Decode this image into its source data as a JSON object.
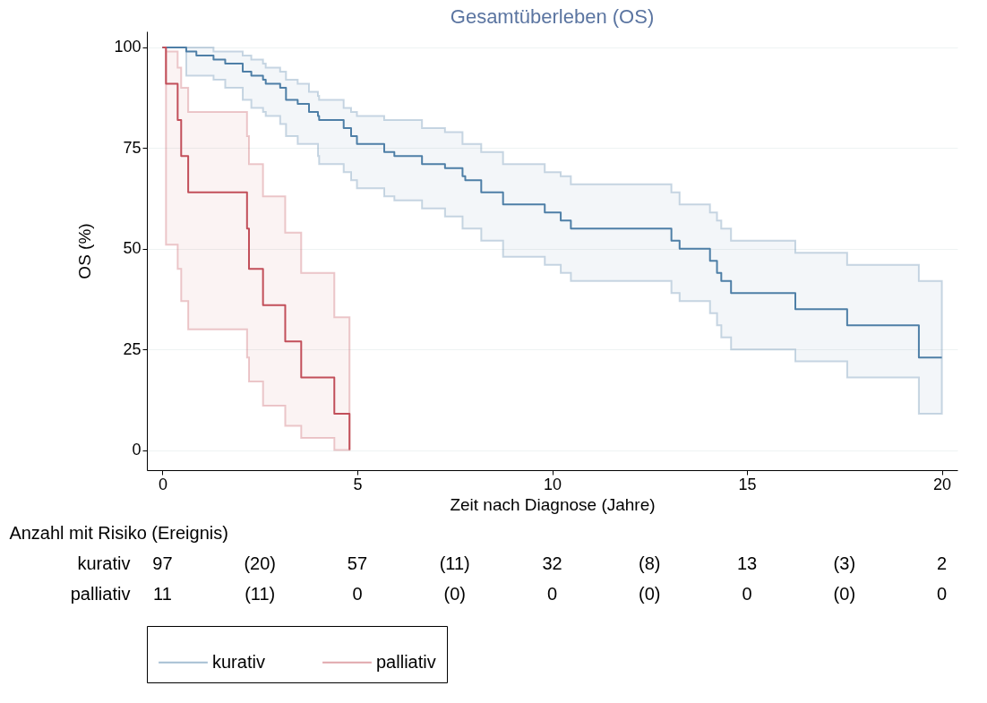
{
  "chart_data": {
    "type": "step",
    "title": "Gesamtüberleben (OS)",
    "xlabel": "Zeit nach Diagnose (Jahre)",
    "ylabel": "OS (%)",
    "xlim": [
      -0.4,
      20.4
    ],
    "ylim": [
      -5,
      104
    ],
    "xticks": [
      0,
      5,
      10,
      15,
      20
    ],
    "yticks": [
      0,
      25,
      50,
      75,
      100
    ],
    "grid": "y",
    "legend": "bottom",
    "series": [
      {
        "name": "kurativ",
        "color": "#4e7fa7",
        "x": [
          0,
          0.61,
          0.87,
          1.31,
          1.61,
          2.06,
          2.28,
          2.58,
          2.65,
          3.02,
          3.17,
          3.47,
          3.76,
          3.99,
          4.02,
          4.65,
          4.84,
          4.99,
          5.69,
          5.95,
          6.66,
          7.25,
          7.7,
          7.77,
          8.18,
          8.74,
          9.81,
          10.22,
          10.48,
          13.06,
          13.27,
          14.05,
          14.23,
          14.34,
          14.59,
          16.24,
          17.57,
          19.41,
          20
        ],
        "values": [
          100,
          99,
          98,
          97,
          96,
          94,
          93,
          92,
          91,
          90,
          87,
          86,
          84,
          83,
          82,
          80,
          78,
          76,
          74,
          73,
          71,
          70,
          68,
          67,
          64,
          61,
          59,
          57,
          55,
          52,
          50,
          47,
          44,
          42,
          39,
          35,
          31,
          23,
          23
        ],
        "upper": [
          100,
          100,
          100,
          99,
          99,
          98,
          97,
          96,
          95,
          94,
          92,
          91,
          89,
          88,
          87,
          85,
          84,
          83,
          82,
          82,
          80,
          79,
          76,
          76,
          74,
          71,
          69,
          68,
          66,
          64,
          61,
          59,
          57,
          55,
          52,
          49,
          46,
          42,
          42
        ],
        "lower": [
          100,
          93,
          93,
          92,
          90,
          87,
          85,
          84,
          83,
          81,
          78,
          76,
          76,
          73,
          71,
          69,
          67,
          65,
          63,
          62,
          60,
          58,
          55,
          55,
          52,
          48,
          46,
          44,
          42,
          39,
          37,
          34,
          31,
          28,
          25,
          22,
          18,
          9,
          9
        ]
      },
      {
        "name": "palliativ",
        "color": "#c24f5a",
        "x": [
          0,
          0.09,
          0.39,
          0.48,
          0.66,
          2.17,
          2.22,
          2.58,
          3.15,
          3.56,
          4.41,
          4.8
        ],
        "values": [
          100,
          91,
          82,
          73,
          64,
          55,
          45,
          36,
          27,
          18,
          9,
          0
        ],
        "upper": [
          100,
          99,
          95,
          90,
          84,
          78,
          71,
          63,
          54,
          44,
          33,
          33
        ],
        "lower": [
          100,
          51,
          45,
          37,
          30,
          23,
          17,
          11,
          6,
          3,
          0,
          0
        ]
      }
    ],
    "annotations": [
      "Anzahl mit Risiko (Ereignis)",
      "kurativ",
      "97",
      "(20)",
      "57",
      "(11)",
      "32",
      "(8)",
      "13",
      "(3)",
      "2",
      "palliativ",
      "11",
      "(11)",
      "0",
      "(0)",
      "0",
      "(0)",
      "0",
      "(0)",
      "0"
    ]
  }
}
